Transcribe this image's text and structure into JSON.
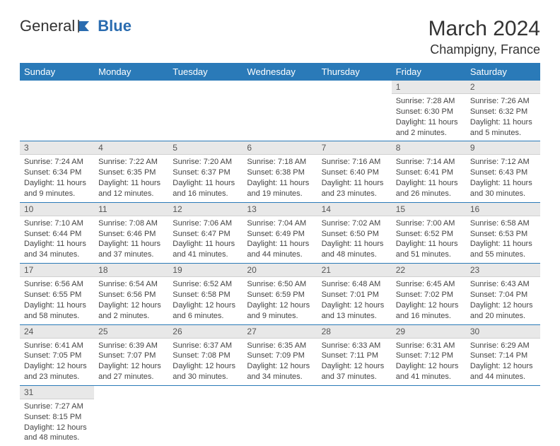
{
  "logo": {
    "text1": "General",
    "text2": "Blue"
  },
  "header": {
    "month": "March 2024",
    "location": "Champigny, France"
  },
  "colors": {
    "header_bg": "#2a7ab8",
    "header_text": "#ffffff",
    "daynum_bg": "#e8e8e8",
    "cell_border": "#2a7ab8",
    "logo_blue": "#2a6cb0"
  },
  "weekdays": [
    "Sunday",
    "Monday",
    "Tuesday",
    "Wednesday",
    "Thursday",
    "Friday",
    "Saturday"
  ],
  "cells": [
    {
      "blank": true
    },
    {
      "blank": true
    },
    {
      "blank": true
    },
    {
      "blank": true
    },
    {
      "blank": true
    },
    {
      "day": "1",
      "sunrise": "Sunrise: 7:28 AM",
      "sunset": "Sunset: 6:30 PM",
      "daylight": "Daylight: 11 hours and 2 minutes."
    },
    {
      "day": "2",
      "sunrise": "Sunrise: 7:26 AM",
      "sunset": "Sunset: 6:32 PM",
      "daylight": "Daylight: 11 hours and 5 minutes."
    },
    {
      "day": "3",
      "sunrise": "Sunrise: 7:24 AM",
      "sunset": "Sunset: 6:34 PM",
      "daylight": "Daylight: 11 hours and 9 minutes."
    },
    {
      "day": "4",
      "sunrise": "Sunrise: 7:22 AM",
      "sunset": "Sunset: 6:35 PM",
      "daylight": "Daylight: 11 hours and 12 minutes."
    },
    {
      "day": "5",
      "sunrise": "Sunrise: 7:20 AM",
      "sunset": "Sunset: 6:37 PM",
      "daylight": "Daylight: 11 hours and 16 minutes."
    },
    {
      "day": "6",
      "sunrise": "Sunrise: 7:18 AM",
      "sunset": "Sunset: 6:38 PM",
      "daylight": "Daylight: 11 hours and 19 minutes."
    },
    {
      "day": "7",
      "sunrise": "Sunrise: 7:16 AM",
      "sunset": "Sunset: 6:40 PM",
      "daylight": "Daylight: 11 hours and 23 minutes."
    },
    {
      "day": "8",
      "sunrise": "Sunrise: 7:14 AM",
      "sunset": "Sunset: 6:41 PM",
      "daylight": "Daylight: 11 hours and 26 minutes."
    },
    {
      "day": "9",
      "sunrise": "Sunrise: 7:12 AM",
      "sunset": "Sunset: 6:43 PM",
      "daylight": "Daylight: 11 hours and 30 minutes."
    },
    {
      "day": "10",
      "sunrise": "Sunrise: 7:10 AM",
      "sunset": "Sunset: 6:44 PM",
      "daylight": "Daylight: 11 hours and 34 minutes."
    },
    {
      "day": "11",
      "sunrise": "Sunrise: 7:08 AM",
      "sunset": "Sunset: 6:46 PM",
      "daylight": "Daylight: 11 hours and 37 minutes."
    },
    {
      "day": "12",
      "sunrise": "Sunrise: 7:06 AM",
      "sunset": "Sunset: 6:47 PM",
      "daylight": "Daylight: 11 hours and 41 minutes."
    },
    {
      "day": "13",
      "sunrise": "Sunrise: 7:04 AM",
      "sunset": "Sunset: 6:49 PM",
      "daylight": "Daylight: 11 hours and 44 minutes."
    },
    {
      "day": "14",
      "sunrise": "Sunrise: 7:02 AM",
      "sunset": "Sunset: 6:50 PM",
      "daylight": "Daylight: 11 hours and 48 minutes."
    },
    {
      "day": "15",
      "sunrise": "Sunrise: 7:00 AM",
      "sunset": "Sunset: 6:52 PM",
      "daylight": "Daylight: 11 hours and 51 minutes."
    },
    {
      "day": "16",
      "sunrise": "Sunrise: 6:58 AM",
      "sunset": "Sunset: 6:53 PM",
      "daylight": "Daylight: 11 hours and 55 minutes."
    },
    {
      "day": "17",
      "sunrise": "Sunrise: 6:56 AM",
      "sunset": "Sunset: 6:55 PM",
      "daylight": "Daylight: 11 hours and 58 minutes."
    },
    {
      "day": "18",
      "sunrise": "Sunrise: 6:54 AM",
      "sunset": "Sunset: 6:56 PM",
      "daylight": "Daylight: 12 hours and 2 minutes."
    },
    {
      "day": "19",
      "sunrise": "Sunrise: 6:52 AM",
      "sunset": "Sunset: 6:58 PM",
      "daylight": "Daylight: 12 hours and 6 minutes."
    },
    {
      "day": "20",
      "sunrise": "Sunrise: 6:50 AM",
      "sunset": "Sunset: 6:59 PM",
      "daylight": "Daylight: 12 hours and 9 minutes."
    },
    {
      "day": "21",
      "sunrise": "Sunrise: 6:48 AM",
      "sunset": "Sunset: 7:01 PM",
      "daylight": "Daylight: 12 hours and 13 minutes."
    },
    {
      "day": "22",
      "sunrise": "Sunrise: 6:45 AM",
      "sunset": "Sunset: 7:02 PM",
      "daylight": "Daylight: 12 hours and 16 minutes."
    },
    {
      "day": "23",
      "sunrise": "Sunrise: 6:43 AM",
      "sunset": "Sunset: 7:04 PM",
      "daylight": "Daylight: 12 hours and 20 minutes."
    },
    {
      "day": "24",
      "sunrise": "Sunrise: 6:41 AM",
      "sunset": "Sunset: 7:05 PM",
      "daylight": "Daylight: 12 hours and 23 minutes."
    },
    {
      "day": "25",
      "sunrise": "Sunrise: 6:39 AM",
      "sunset": "Sunset: 7:07 PM",
      "daylight": "Daylight: 12 hours and 27 minutes."
    },
    {
      "day": "26",
      "sunrise": "Sunrise: 6:37 AM",
      "sunset": "Sunset: 7:08 PM",
      "daylight": "Daylight: 12 hours and 30 minutes."
    },
    {
      "day": "27",
      "sunrise": "Sunrise: 6:35 AM",
      "sunset": "Sunset: 7:09 PM",
      "daylight": "Daylight: 12 hours and 34 minutes."
    },
    {
      "day": "28",
      "sunrise": "Sunrise: 6:33 AM",
      "sunset": "Sunset: 7:11 PM",
      "daylight": "Daylight: 12 hours and 37 minutes."
    },
    {
      "day": "29",
      "sunrise": "Sunrise: 6:31 AM",
      "sunset": "Sunset: 7:12 PM",
      "daylight": "Daylight: 12 hours and 41 minutes."
    },
    {
      "day": "30",
      "sunrise": "Sunrise: 6:29 AM",
      "sunset": "Sunset: 7:14 PM",
      "daylight": "Daylight: 12 hours and 44 minutes."
    },
    {
      "day": "31",
      "sunrise": "Sunrise: 7:27 AM",
      "sunset": "Sunset: 8:15 PM",
      "daylight": "Daylight: 12 hours and 48 minutes."
    },
    {
      "blank": true
    },
    {
      "blank": true
    },
    {
      "blank": true
    },
    {
      "blank": true
    },
    {
      "blank": true
    },
    {
      "blank": true
    }
  ]
}
